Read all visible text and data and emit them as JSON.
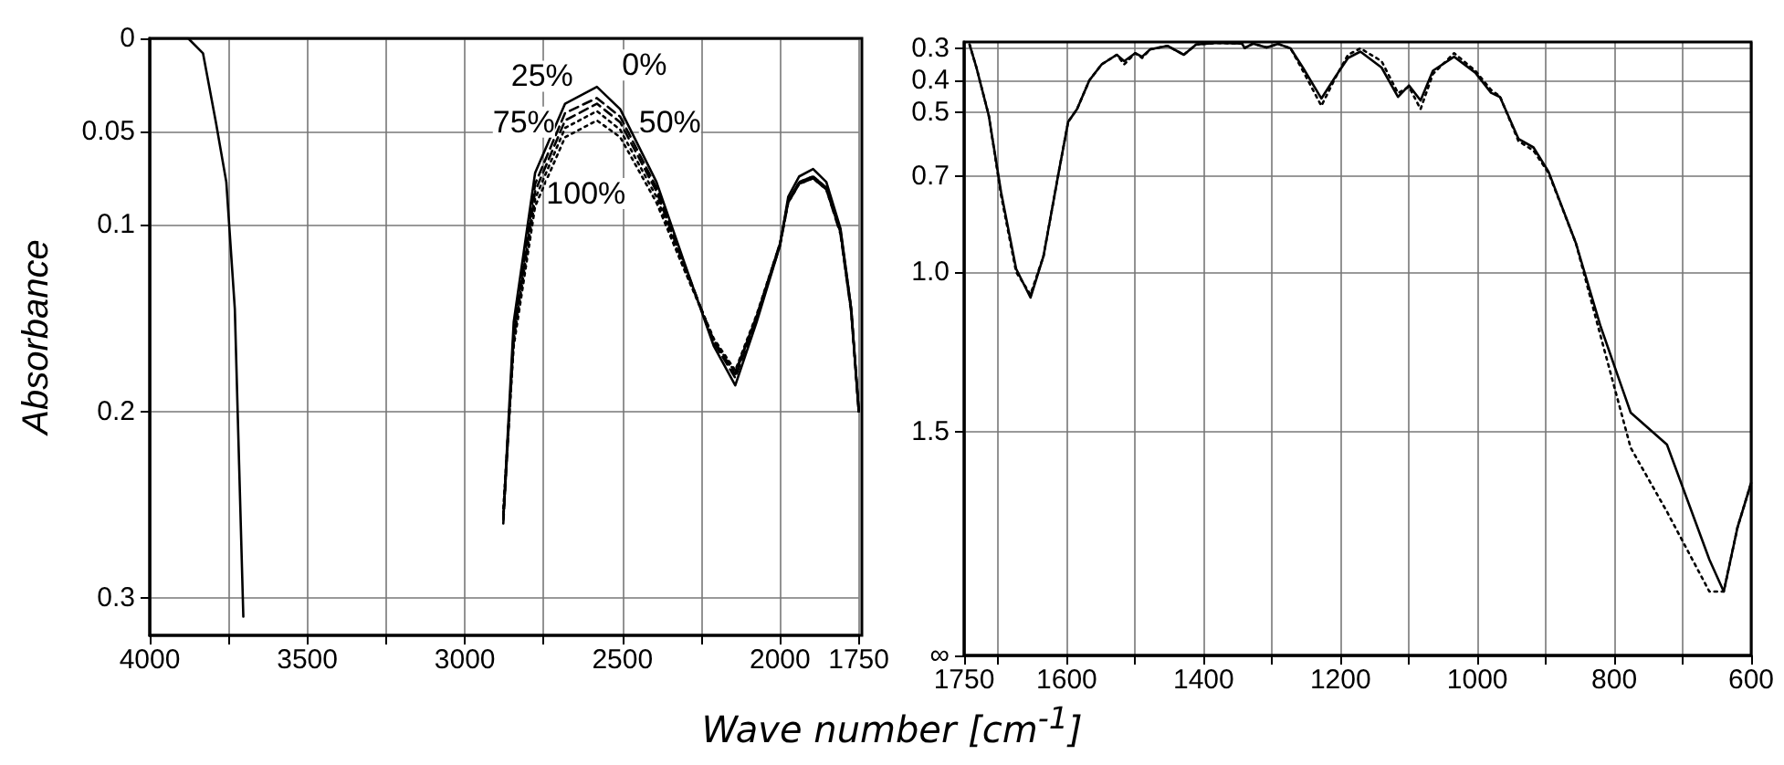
{
  "chart_data": [
    {
      "type": "line",
      "xlabel": "Wave number [cm$^{-1}$]",
      "ylabel": "Absorbance",
      "xlim": [
        4000,
        1750
      ],
      "ylim": [
        0.32,
        0
      ],
      "xticks": [
        4000,
        {
          "value": 3750,
          "label": null
        },
        3500,
        {
          "value": 3250,
          "label": null
        },
        3000,
        {
          "value": 2750,
          "label": null
        },
        2500,
        {
          "value": 2250,
          "label": null
        },
        2000,
        1750
      ],
      "yticks": [
        0,
        0.05,
        0.1,
        0.2,
        0.3
      ],
      "grid": true,
      "marker": "none",
      "series": [
        {
          "color": "#000000",
          "line_style": "solid",
          "x": [
            4000,
            3920,
            3878,
            3831,
            3790,
            3757,
            3730,
            3703
          ],
          "values": [
            0,
            0,
            0,
            0.008,
            0.045,
            0.077,
            0.145,
            0.31
          ]
        },
        {
          "name": "0%",
          "color": "#000000",
          "line_style": "solid",
          "x": [
            2878,
            2845,
            2777,
            2682,
            2581,
            2507,
            2392,
            2304,
            2210,
            2142,
            2074,
            2000,
            1974,
            1939,
            1895,
            1853,
            1808,
            1774,
            1750
          ],
          "values": [
            0.257,
            0.152,
            0.072,
            0.035,
            0.026,
            0.038,
            0.077,
            0.12,
            0.165,
            0.186,
            0.152,
            0.111,
            0.085,
            0.074,
            0.07,
            0.077,
            0.102,
            0.145,
            0.2
          ]
        },
        {
          "name": "25%",
          "color": "#000000",
          "line_style": "dashed",
          "x": [
            2878,
            2845,
            2777,
            2682,
            2581,
            2507,
            2392,
            2304,
            2210,
            2142,
            2074,
            2000,
            1974,
            1939,
            1895,
            1853,
            1808,
            1774,
            1750
          ],
          "values": [
            0.26,
            0.158,
            0.078,
            0.04,
            0.032,
            0.042,
            0.08,
            0.121,
            0.163,
            0.182,
            0.15,
            0.111,
            0.088,
            0.078,
            0.075,
            0.081,
            0.105,
            0.147,
            0.2
          ]
        },
        {
          "name": "50%",
          "color": "#000000",
          "line_style": "dashed",
          "x": [
            2878,
            2845,
            2777,
            2682,
            2581,
            2507,
            2392,
            2304,
            2210,
            2142,
            2074,
            2000,
            1974,
            1939,
            1895,
            1853,
            1808,
            1774,
            1750
          ],
          "values": [
            0.258,
            0.16,
            0.082,
            0.044,
            0.035,
            0.045,
            0.082,
            0.122,
            0.162,
            0.18,
            0.149,
            0.11,
            0.088,
            0.078,
            0.075,
            0.081,
            0.104,
            0.146,
            0.2
          ]
        },
        {
          "name": "75%",
          "color": "#000000",
          "line_style": "dotted",
          "x": [
            2878,
            2845,
            2777,
            2682,
            2581,
            2507,
            2392,
            2304,
            2210,
            2142,
            2074,
            2000,
            1974,
            1939,
            1895,
            1853,
            1808,
            1774,
            1750
          ],
          "values": [
            0.255,
            0.162,
            0.086,
            0.048,
            0.039,
            0.049,
            0.085,
            0.123,
            0.162,
            0.179,
            0.149,
            0.11,
            0.087,
            0.077,
            0.074,
            0.08,
            0.103,
            0.146,
            0.2
          ]
        },
        {
          "name": "100%",
          "color": "#000000",
          "line_style": "dotted",
          "x": [
            2878,
            2845,
            2777,
            2682,
            2581,
            2507,
            2392,
            2304,
            2210,
            2142,
            2074,
            2000,
            1974,
            1939,
            1895,
            1853,
            1808,
            1774,
            1750
          ],
          "values": [
            0.252,
            0.165,
            0.09,
            0.053,
            0.044,
            0.053,
            0.088,
            0.124,
            0.161,
            0.178,
            0.148,
            0.11,
            0.087,
            0.077,
            0.074,
            0.08,
            0.103,
            0.145,
            0.2
          ]
        }
      ]
    },
    {
      "type": "line",
      "xlim": [
        1750,
        600
      ],
      "ylim": [
        2.2,
        0.28
      ],
      "xticks": [
        1750,
        {
          "value": 1700,
          "label": null
        },
        1600,
        {
          "value": 1500,
          "label": null
        },
        1400,
        {
          "value": 1300,
          "label": null
        },
        1200,
        {
          "value": 1100,
          "label": null
        },
        1000,
        {
          "value": 900,
          "label": null
        },
        800,
        {
          "value": 700,
          "label": null
        },
        600
      ],
      "yticks": [
        0.3,
        0.4,
        0.5,
        0.7,
        {
          "value": 1,
          "label": "1.0"
        },
        1.5,
        {
          "value": 2.2,
          "label": "∞"
        }
      ],
      "grid": true,
      "marker": "none",
      "series": [
        {
          "color": "#000000",
          "line_style": "solid",
          "x": [
            1742,
            1732,
            1714,
            1696,
            1674,
            1653,
            1634,
            1612,
            1598,
            1585,
            1567,
            1549,
            1527,
            1516,
            1500,
            1490,
            1478,
            1453,
            1429,
            1411,
            1380,
            1344,
            1340,
            1328,
            1308,
            1291,
            1273,
            1255,
            1228,
            1207,
            1189,
            1171,
            1140,
            1116,
            1100,
            1083,
            1065,
            1034,
            1003,
            980,
            967,
            940,
            918,
            896,
            856,
            820,
            776,
            723,
            661,
            640,
            620,
            600
          ],
          "values": [
            0.288,
            0.36,
            0.51,
            0.75,
            0.99,
            1.08,
            0.95,
            0.69,
            0.53,
            0.49,
            0.4,
            0.35,
            0.32,
            0.34,
            0.315,
            0.326,
            0.303,
            0.292,
            0.32,
            0.288,
            0.283,
            0.285,
            0.299,
            0.285,
            0.297,
            0.286,
            0.3,
            0.36,
            0.457,
            0.387,
            0.33,
            0.31,
            0.36,
            0.452,
            0.416,
            0.463,
            0.37,
            0.326,
            0.376,
            0.439,
            0.452,
            0.583,
            0.61,
            0.686,
            0.91,
            1.17,
            1.44,
            1.54,
            1.9,
            2,
            1.8,
            1.66
          ]
        },
        {
          "color": "#000000",
          "line_style": "dotted",
          "x": [
            1742,
            1732,
            1714,
            1696,
            1674,
            1653,
            1634,
            1612,
            1598,
            1585,
            1567,
            1549,
            1527,
            1516,
            1500,
            1490,
            1478,
            1453,
            1429,
            1411,
            1380,
            1344,
            1340,
            1328,
            1308,
            1291,
            1273,
            1255,
            1228,
            1207,
            1189,
            1171,
            1140,
            1116,
            1100,
            1083,
            1065,
            1034,
            1003,
            980,
            967,
            940,
            918,
            896,
            856,
            820,
            776,
            723,
            661,
            640,
            620,
            600
          ],
          "values": [
            0.288,
            0.36,
            0.51,
            0.76,
            1.0,
            1.07,
            0.95,
            0.69,
            0.53,
            0.49,
            0.4,
            0.35,
            0.32,
            0.35,
            0.315,
            0.33,
            0.303,
            0.292,
            0.32,
            0.288,
            0.283,
            0.285,
            0.299,
            0.285,
            0.297,
            0.286,
            0.3,
            0.37,
            0.48,
            0.39,
            0.32,
            0.3,
            0.34,
            0.44,
            0.42,
            0.49,
            0.38,
            0.315,
            0.37,
            0.43,
            0.45,
            0.59,
            0.62,
            0.69,
            0.91,
            1.2,
            1.55,
            1.75,
            2,
            2,
            1.8,
            1.66
          ]
        }
      ]
    }
  ]
}
